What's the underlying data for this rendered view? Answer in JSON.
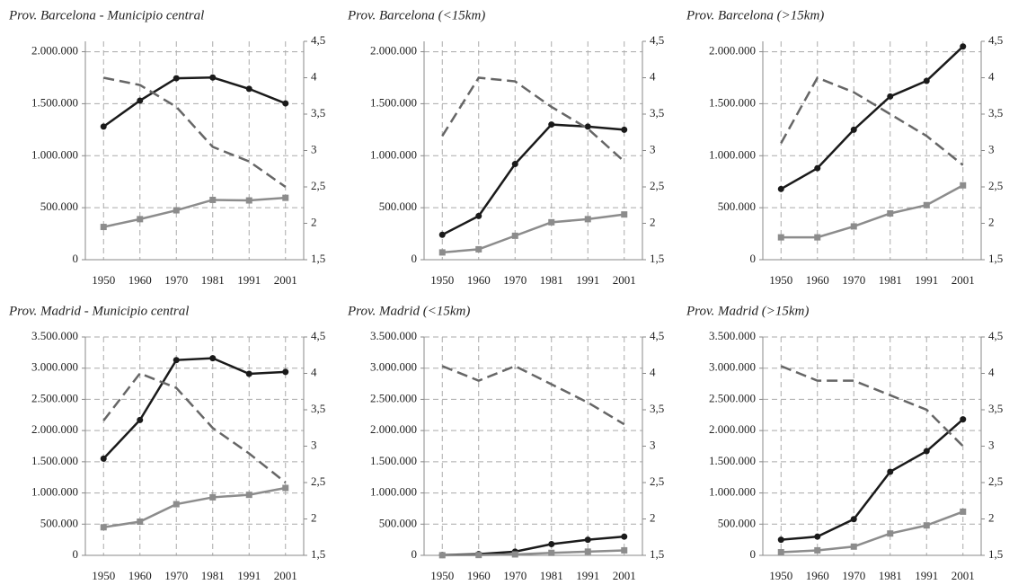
{
  "chart_data": [
    {
      "type": "line",
      "title": "Prov. Barcelona - Municipio central",
      "categories": [
        "1950",
        "1960",
        "1970",
        "1981",
        "1991",
        "2001"
      ],
      "series": [
        {
          "color": "#1a1a1a",
          "marker": "circle",
          "values": [
            1280000,
            1530000,
            1745000,
            1752000,
            1643000,
            1503000
          ]
        },
        {
          "color": "#8c8c8c",
          "marker": "square",
          "values": [
            315000,
            390000,
            475000,
            575000,
            570000,
            595000
          ]
        },
        {
          "color": "#666666",
          "dashed": true,
          "axis": "y2",
          "values": [
            4.0,
            3.9,
            3.6,
            3.05,
            2.85,
            2.5
          ]
        }
      ],
      "ylim": [
        0,
        2100000
      ],
      "yticks": [
        0,
        {
          "value": 500000,
          "label": "500.000"
        },
        {
          "value": 1000000,
          "label": "1.000.000"
        },
        {
          "value": 1500000,
          "label": "1.500.000"
        },
        {
          "value": 2000000,
          "label": "2.000.000"
        }
      ],
      "y2lim": [
        1.5,
        4.5
      ],
      "y2ticks": [
        {
          "value": 1.5,
          "label": "1,5"
        },
        2,
        {
          "value": 2.5,
          "label": "2,5"
        },
        3,
        {
          "value": 3.5,
          "label": "3,5"
        },
        4,
        {
          "value": 4.5,
          "label": "4,5"
        }
      ],
      "grid": true
    },
    {
      "type": "line",
      "title": "Prov. Barcelona (<15km)",
      "categories": [
        "1950",
        "1960",
        "1970",
        "1981",
        "1991",
        "2001"
      ],
      "series": [
        {
          "color": "#1a1a1a",
          "marker": "circle",
          "values": [
            240000,
            420000,
            920000,
            1300000,
            1280000,
            1250000
          ]
        },
        {
          "color": "#8c8c8c",
          "marker": "square",
          "values": [
            70000,
            100000,
            230000,
            360000,
            390000,
            435000
          ]
        },
        {
          "color": "#666666",
          "dashed": true,
          "axis": "y2",
          "values": [
            3.2,
            4.0,
            3.95,
            3.6,
            3.3,
            2.85
          ]
        }
      ],
      "ylim": [
        0,
        2100000
      ],
      "yticks": [
        0,
        {
          "value": 500000,
          "label": "500.000"
        },
        {
          "value": 1000000,
          "label": "1.000.000"
        },
        {
          "value": 1500000,
          "label": "1.500.000"
        },
        {
          "value": 2000000,
          "label": "2.000.000"
        }
      ],
      "y2lim": [
        1.5,
        4.5
      ],
      "y2ticks": [
        {
          "value": 1.5,
          "label": "1,5"
        },
        2,
        {
          "value": 2.5,
          "label": "2,5"
        },
        3,
        {
          "value": 3.5,
          "label": "3,5"
        },
        4,
        {
          "value": 4.5,
          "label": "4,5"
        }
      ],
      "grid": true
    },
    {
      "type": "line",
      "title": "Prov. Barcelona (>15km)",
      "categories": [
        "1950",
        "1960",
        "1970",
        "1981",
        "1991",
        "2001"
      ],
      "series": [
        {
          "color": "#1a1a1a",
          "marker": "circle",
          "values": [
            680000,
            880000,
            1250000,
            1570000,
            1720000,
            2050000
          ]
        },
        {
          "color": "#8c8c8c",
          "marker": "square",
          "values": [
            215000,
            215000,
            320000,
            445000,
            525000,
            715000
          ]
        },
        {
          "color": "#666666",
          "dashed": true,
          "axis": "y2",
          "values": [
            3.1,
            4.0,
            3.8,
            3.5,
            3.2,
            2.8
          ]
        }
      ],
      "ylim": [
        0,
        2100000
      ],
      "yticks": [
        0,
        {
          "value": 500000,
          "label": "500.000"
        },
        {
          "value": 1000000,
          "label": "1.000.000"
        },
        {
          "value": 1500000,
          "label": "1.500.000"
        },
        {
          "value": 2000000,
          "label": "2.000.000"
        }
      ],
      "y2lim": [
        1.5,
        4.5
      ],
      "y2ticks": [
        {
          "value": 1.5,
          "label": "1,5"
        },
        2,
        {
          "value": 2.5,
          "label": "2,5"
        },
        3,
        {
          "value": 3.5,
          "label": "3,5"
        },
        4,
        {
          "value": 4.5,
          "label": "4,5"
        }
      ],
      "grid": true
    },
    {
      "type": "line",
      "title": "Prov. Madrid - Municipio central",
      "categories": [
        "1950",
        "1960",
        "1970",
        "1981",
        "1991",
        "2001"
      ],
      "series": [
        {
          "color": "#1a1a1a",
          "marker": "circle",
          "values": [
            1550000,
            2170000,
            3130000,
            3160000,
            2910000,
            2940000
          ]
        },
        {
          "color": "#8c8c8c",
          "marker": "square",
          "values": [
            450000,
            540000,
            820000,
            930000,
            970000,
            1080000
          ]
        },
        {
          "color": "#666666",
          "dashed": true,
          "axis": "y2",
          "values": [
            3.35,
            4.0,
            3.8,
            3.25,
            2.9,
            2.5
          ]
        }
      ],
      "ylim": [
        0,
        3500000
      ],
      "yticks": [
        0,
        {
          "value": 500000,
          "label": "500.000"
        },
        {
          "value": 1000000,
          "label": "1.000.000"
        },
        {
          "value": 1500000,
          "label": "1.500.000"
        },
        {
          "value": 2000000,
          "label": "2.000.000"
        },
        {
          "value": 2500000,
          "label": "2.500.000"
        },
        {
          "value": 3000000,
          "label": "3.000.000"
        },
        {
          "value": 3500000,
          "label": "3.500.000"
        }
      ],
      "y2lim": [
        1.5,
        4.5
      ],
      "y2ticks": [
        {
          "value": 1.5,
          "label": "1,5"
        },
        2,
        {
          "value": 2.5,
          "label": "2,5"
        },
        3,
        {
          "value": 3.5,
          "label": "3,5"
        },
        4,
        {
          "value": 4.5,
          "label": "4,5"
        }
      ],
      "grid": true
    },
    {
      "type": "line",
      "title": "Prov. Madrid (<15km)",
      "categories": [
        "1950",
        "1960",
        "1970",
        "1981",
        "1991",
        "2001"
      ],
      "series": [
        {
          "color": "#1a1a1a",
          "marker": "circle",
          "values": [
            5000,
            20000,
            60000,
            180000,
            250000,
            300000
          ]
        },
        {
          "color": "#8c8c8c",
          "marker": "square",
          "values": [
            2000,
            5000,
            15000,
            40000,
            60000,
            80000
          ]
        },
        {
          "color": "#666666",
          "dashed": true,
          "axis": "y2",
          "values": [
            4.1,
            3.9,
            4.1,
            3.85,
            3.6,
            3.3
          ]
        }
      ],
      "ylim": [
        0,
        3500000
      ],
      "yticks": [
        0,
        {
          "value": 500000,
          "label": "500.000"
        },
        {
          "value": 1000000,
          "label": "1.000.000"
        },
        {
          "value": 1500000,
          "label": "1.500.000"
        },
        {
          "value": 2000000,
          "label": "2.000.000"
        },
        {
          "value": 2500000,
          "label": "2.500.000"
        },
        {
          "value": 3000000,
          "label": "3.000.000"
        },
        {
          "value": 3500000,
          "label": "3.500.000"
        }
      ],
      "y2lim": [
        1.5,
        4.5
      ],
      "y2ticks": [
        {
          "value": 1.5,
          "label": "1,5"
        },
        2,
        {
          "value": 2.5,
          "label": "2,5"
        },
        3,
        {
          "value": 3.5,
          "label": "3,5"
        },
        4,
        {
          "value": 4.5,
          "label": "4,5"
        }
      ],
      "grid": true
    },
    {
      "type": "line",
      "title": "Prov. Madrid (>15km)",
      "categories": [
        "1950",
        "1960",
        "1970",
        "1981",
        "1991",
        "2001"
      ],
      "series": [
        {
          "color": "#1a1a1a",
          "marker": "circle",
          "values": [
            250000,
            300000,
            580000,
            1340000,
            1670000,
            2180000
          ]
        },
        {
          "color": "#8c8c8c",
          "marker": "square",
          "values": [
            50000,
            80000,
            140000,
            350000,
            480000,
            700000
          ]
        },
        {
          "color": "#666666",
          "dashed": true,
          "axis": "y2",
          "values": [
            4.1,
            3.9,
            3.9,
            3.7,
            3.5,
            3.0
          ]
        }
      ],
      "ylim": [
        0,
        3500000
      ],
      "yticks": [
        0,
        {
          "value": 500000,
          "label": "500.000"
        },
        {
          "value": 1000000,
          "label": "1.000.000"
        },
        {
          "value": 1500000,
          "label": "1.500.000"
        },
        {
          "value": 2000000,
          "label": "2.000.000"
        },
        {
          "value": 2500000,
          "label": "2.500.000"
        },
        {
          "value": 3000000,
          "label": "3.000.000"
        },
        {
          "value": 3500000,
          "label": "3.500.000"
        }
      ],
      "y2lim": [
        1.5,
        4.5
      ],
      "y2ticks": [
        {
          "value": 1.5,
          "label": "1,5"
        },
        2,
        {
          "value": 2.5,
          "label": "2,5"
        },
        3,
        {
          "value": 3.5,
          "label": "3,5"
        },
        4,
        {
          "value": 4.5,
          "label": "4,5"
        }
      ],
      "grid": true
    }
  ]
}
